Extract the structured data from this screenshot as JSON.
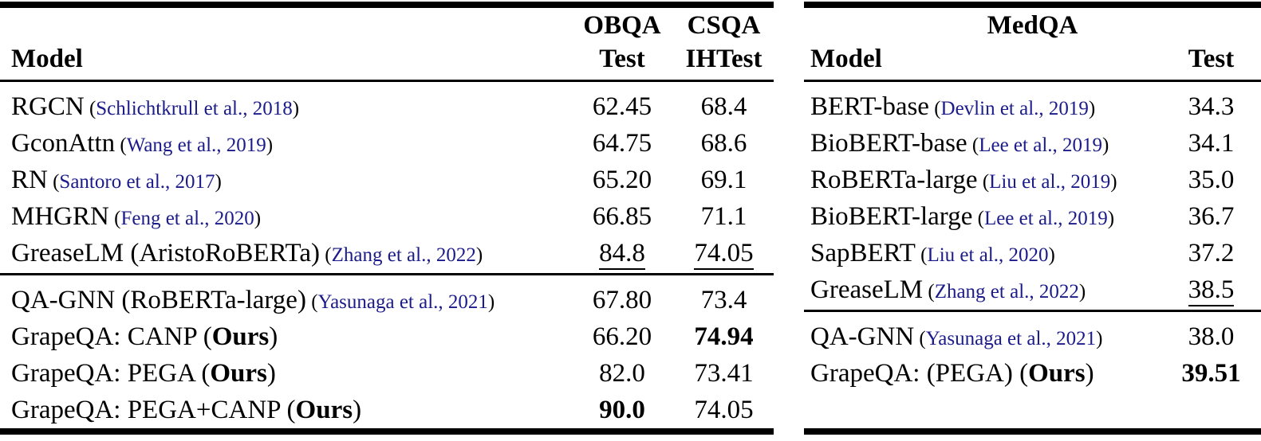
{
  "colors": {
    "citation_link": "#1b1b8a",
    "text": "#000000",
    "background": "#ffffff"
  },
  "labels": {
    "ours": "Ours"
  },
  "left_table": {
    "headers": {
      "model": "Model",
      "col1_top": "OBQA",
      "col1_bottom": "Test",
      "col2_top": "CSQA",
      "col2_bottom": "IHTest"
    },
    "section1": [
      {
        "name": "RGCN",
        "citation": "Schlichtkrull et al., 2018",
        "ours": false,
        "values": [
          {
            "text": "62.45"
          },
          {
            "text": "68.4"
          }
        ]
      },
      {
        "name": "GconAttn",
        "citation": "Wang et al., 2019",
        "ours": false,
        "values": [
          {
            "text": "64.75"
          },
          {
            "text": "68.6"
          }
        ]
      },
      {
        "name": "RN",
        "citation": "Santoro et al., 2017",
        "ours": false,
        "values": [
          {
            "text": "65.20"
          },
          {
            "text": "69.1"
          }
        ]
      },
      {
        "name": "MHGRN",
        "citation": "Feng et al., 2020",
        "ours": false,
        "values": [
          {
            "text": "66.85"
          },
          {
            "text": "71.1"
          }
        ]
      },
      {
        "name": "GreaseLM (AristoRoBERTa)",
        "citation": "Zhang et al., 2022",
        "ours": false,
        "values": [
          {
            "text": "84.8",
            "underline": true
          },
          {
            "text": "74.05",
            "underline": true
          }
        ]
      }
    ],
    "section2": [
      {
        "name": "QA-GNN (RoBERTa-large)",
        "citation": "Yasunaga et al., 2021",
        "ours": false,
        "values": [
          {
            "text": "67.80"
          },
          {
            "text": "73.4"
          }
        ]
      },
      {
        "name": "GrapeQA: CANP",
        "citation": null,
        "ours": true,
        "values": [
          {
            "text": "66.20"
          },
          {
            "text": "74.94",
            "bold": true
          }
        ]
      },
      {
        "name": "GrapeQA: PEGA",
        "citation": null,
        "ours": true,
        "values": [
          {
            "text": "82.0"
          },
          {
            "text": "73.41"
          }
        ]
      },
      {
        "name": "GrapeQA: PEGA+CANP",
        "citation": null,
        "ours": true,
        "values": [
          {
            "text": "90.0",
            "bold": true
          },
          {
            "text": "74.05"
          }
        ]
      }
    ]
  },
  "right_table": {
    "headers": {
      "group": "MedQA",
      "model": "Model",
      "col1": "Test"
    },
    "section1": [
      {
        "name": "BERT-base",
        "citation": "Devlin et al., 2019",
        "ours": false,
        "values": [
          {
            "text": "34.3"
          }
        ]
      },
      {
        "name": "BioBERT-base",
        "citation": "Lee et al., 2019",
        "ours": false,
        "values": [
          {
            "text": "34.1"
          }
        ]
      },
      {
        "name": "RoBERTa-large",
        "citation": "Liu et al., 2019",
        "ours": false,
        "values": [
          {
            "text": "35.0"
          }
        ]
      },
      {
        "name": "BioBERT-large",
        "citation": "Lee et al., 2019",
        "ours": false,
        "values": [
          {
            "text": "36.7"
          }
        ]
      },
      {
        "name": "SapBERT",
        "citation": "Liu et al., 2020",
        "ours": false,
        "values": [
          {
            "text": "37.2"
          }
        ]
      },
      {
        "name": "GreaseLM",
        "citation": "Zhang et al., 2022",
        "ours": false,
        "values": [
          {
            "text": "38.5",
            "underline": true
          }
        ]
      }
    ],
    "section2": [
      {
        "name": "QA-GNN",
        "citation": "Yasunaga et al., 2021",
        "ours": false,
        "values": [
          {
            "text": "38.0"
          }
        ]
      },
      {
        "name": "GrapeQA: (PEGA)",
        "citation": null,
        "ours": true,
        "values": [
          {
            "text": "39.51",
            "bold": true
          }
        ]
      }
    ]
  }
}
